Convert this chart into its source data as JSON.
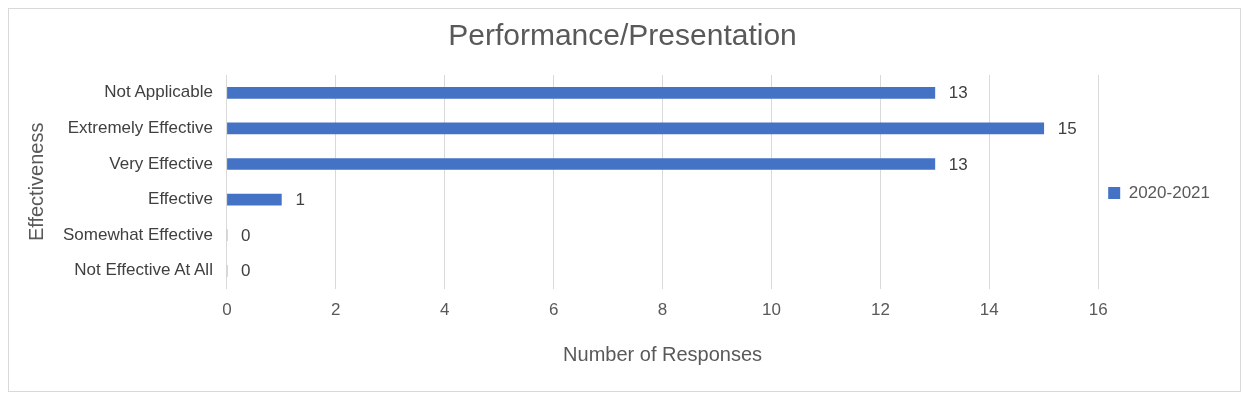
{
  "chart_data": {
    "type": "bar",
    "orientation": "horizontal",
    "title": "Performance/Presentation",
    "xlabel": "Number of Responses",
    "ylabel": "Effectiveness",
    "categories": [
      "Not Applicable",
      "Extremely Effective",
      "Very Effective",
      "Effective",
      "Somewhat Effective",
      "Not Effective At All"
    ],
    "series": [
      {
        "name": "2020-2021",
        "color": "#4472c4",
        "values": [
          13,
          15,
          13,
          1,
          0,
          0
        ]
      }
    ],
    "xlim": [
      0,
      16
    ],
    "xticks": [
      0,
      2,
      4,
      6,
      8,
      10,
      12,
      14,
      16
    ],
    "grid": "x",
    "legend": "right",
    "data_labels": true
  }
}
